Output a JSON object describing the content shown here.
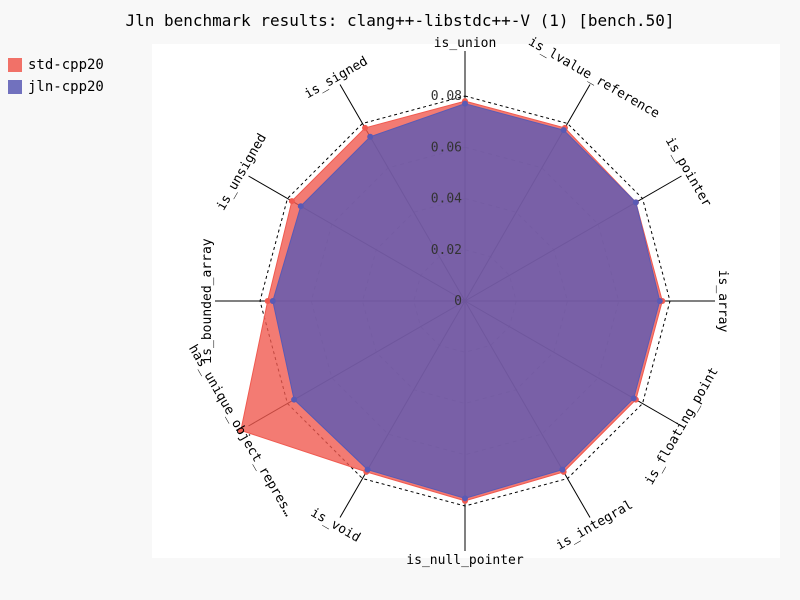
{
  "chart_data": {
    "type": "radar",
    "title": "Jln benchmark results: clang++-libstdc++-V (1) [bench.50]",
    "categories": [
      "is_union",
      "is_lvalue_reference",
      "is_pointer",
      "is_array",
      "is_floating_point",
      "is_integral",
      "is_null_pointer",
      "is_void",
      "has_unique_object_repres…",
      "is_bounded_array",
      "is_unsigned",
      "is_signed"
    ],
    "radial_ticks": [
      "0",
      "0.02",
      "0.04",
      "0.06",
      "0.08"
    ],
    "radial_max": 0.08,
    "legend_position": "top-left",
    "series": [
      {
        "name": "std-cpp20",
        "color": "#f05a50",
        "values": [
          0.078,
          0.078,
          0.077,
          0.077,
          0.077,
          0.077,
          0.078,
          0.077,
          0.101,
          0.077,
          0.078,
          0.078
        ]
      },
      {
        "name": "jln-cpp20",
        "color": "#5a5ab4",
        "values": [
          0.077,
          0.077,
          0.077,
          0.076,
          0.076,
          0.076,
          0.077,
          0.076,
          0.077,
          0.075,
          0.074,
          0.074
        ]
      }
    ]
  }
}
